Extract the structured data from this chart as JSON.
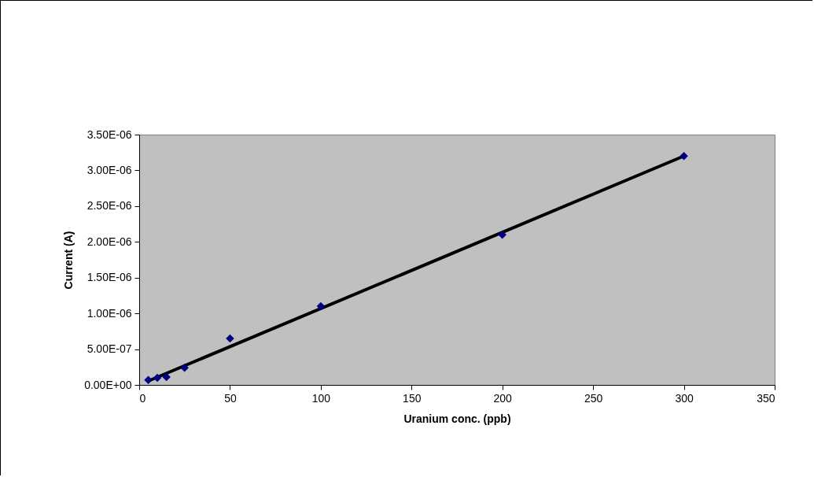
{
  "chart_data": {
    "type": "scatter",
    "xlabel": "Uranium conc. (ppb)",
    "ylabel": "Current (A)",
    "x": [
      5,
      10,
      15,
      25,
      50,
      100,
      200,
      300
    ],
    "series": [
      {
        "marker": "diamond",
        "color": "#000080",
        "values": [
          7e-08,
          1e-07,
          1.1e-07,
          2.4e-07,
          6.5e-07,
          1.1e-06,
          2.1e-06,
          3.2e-06
        ]
      },
      {
        "type": "line",
        "color": "#000000",
        "x": [
          5,
          300
        ],
        "values": [
          5.5e-08,
          3.2e-06
        ]
      }
    ],
    "grid": false,
    "xlim": [
      0,
      350
    ],
    "xticks": [
      0,
      50,
      100,
      150,
      200,
      250,
      300,
      350
    ],
    "ylim": [
      0,
      3.5e-06
    ],
    "yticks": [
      {
        "value": 0,
        "label": "0.00E+00"
      },
      {
        "value": 5e-07,
        "label": "5.00E-07"
      },
      {
        "value": 1e-06,
        "label": "1.00E-06"
      },
      {
        "value": 1.5e-06,
        "label": "1.50E-06"
      },
      {
        "value": 2e-06,
        "label": "2.00E-06"
      },
      {
        "value": 2.5e-06,
        "label": "2.50E-06"
      },
      {
        "value": 3e-06,
        "label": "3.00E-06"
      },
      {
        "value": 3.5e-06,
        "label": "3.50E-06"
      }
    ]
  }
}
